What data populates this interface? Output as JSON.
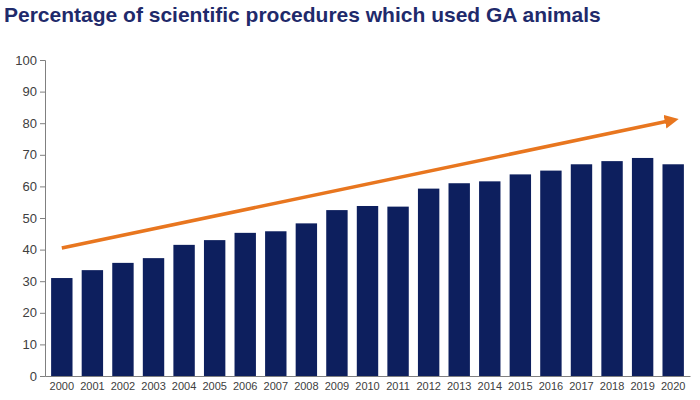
{
  "chart_data": {
    "type": "bar",
    "title": "Percentage of scientific procedures which used GA animals",
    "categories": [
      "2000",
      "2001",
      "2002",
      "2003",
      "2004",
      "2005",
      "2006",
      "2007",
      "2008",
      "2009",
      "2010",
      "2011",
      "2012",
      "2013",
      "2014",
      "2015",
      "2016",
      "2017",
      "2018",
      "2019",
      "2020"
    ],
    "values": [
      31,
      33.5,
      35.8,
      37.3,
      41.5,
      43,
      45.3,
      45.8,
      48.3,
      52.5,
      53.8,
      53.6,
      59.3,
      61,
      61.6,
      63.8,
      65,
      67,
      68,
      69,
      67
    ],
    "color": "#0d1f5e",
    "ylim": [
      0,
      100
    ],
    "yticks": [
      0,
      10,
      20,
      30,
      40,
      50,
      60,
      70,
      80,
      90,
      100
    ],
    "grid": false,
    "trend": {
      "values": [
        40.5,
        81
      ],
      "color": "#e8761f"
    }
  }
}
